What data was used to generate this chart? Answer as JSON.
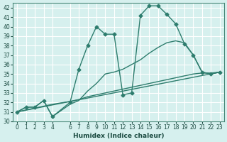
{
  "title": "",
  "xlabel": "Humidex (Indice chaleur)",
  "bg_color": "#d6f0ee",
  "grid_color": "#b8ddd8",
  "line_color": "#2e7d6e",
  "ylim": [
    30,
    42.5
  ],
  "xlim": [
    -0.5,
    23.5
  ],
  "yticks": [
    30,
    31,
    32,
    33,
    34,
    35,
    36,
    37,
    38,
    39,
    40,
    41,
    42
  ],
  "xticks": [
    0,
    1,
    2,
    3,
    4,
    6,
    7,
    8,
    9,
    10,
    11,
    12,
    13,
    14,
    15,
    16,
    17,
    18,
    19,
    20,
    21,
    22,
    23
  ],
  "series": [
    {
      "x": [
        0,
        1,
        2,
        3,
        4,
        6,
        7,
        8,
        9,
        10,
        11,
        12,
        13,
        14,
        15,
        16,
        17,
        18,
        19,
        20,
        21,
        22,
        23
      ],
      "y": [
        31.0,
        31.5,
        31.5,
        32.2,
        30.5,
        32.0,
        35.5,
        38.0,
        40.0,
        39.2,
        39.2,
        32.8,
        33.0,
        41.2,
        42.2,
        42.2,
        41.3,
        40.3,
        38.2,
        37.0,
        35.2,
        35.0,
        35.2
      ],
      "marker": "D",
      "markersize": 2.5,
      "linewidth": 1.0
    },
    {
      "x": [
        0,
        1,
        2,
        3,
        4,
        6,
        7,
        8,
        9,
        10,
        11,
        12,
        13,
        14,
        15,
        16,
        17,
        18,
        19,
        20,
        21,
        22,
        23
      ],
      "y": [
        31.0,
        31.5,
        31.5,
        32.2,
        30.5,
        31.8,
        32.2,
        33.2,
        34.0,
        35.0,
        35.2,
        35.5,
        36.0,
        36.5,
        37.2,
        37.8,
        38.3,
        38.5,
        38.3,
        37.0,
        35.2,
        35.0,
        35.2
      ],
      "marker": null,
      "markersize": 0,
      "linewidth": 1.0
    },
    {
      "x": [
        0,
        1,
        2,
        3,
        4,
        6,
        7,
        8,
        9,
        10,
        11,
        12,
        13,
        14,
        15,
        16,
        17,
        18,
        19,
        20,
        21,
        22,
        23
      ],
      "y": [
        31.0,
        31.2,
        31.4,
        31.6,
        31.8,
        32.1,
        32.3,
        32.6,
        32.8,
        33.0,
        33.2,
        33.4,
        33.6,
        33.8,
        34.0,
        34.2,
        34.4,
        34.6,
        34.8,
        35.0,
        35.1,
        35.1,
        35.2
      ],
      "marker": null,
      "markersize": 0,
      "linewidth": 1.0
    },
    {
      "x": [
        0,
        23
      ],
      "y": [
        31.0,
        35.2
      ],
      "marker": null,
      "markersize": 0,
      "linewidth": 1.0
    }
  ]
}
